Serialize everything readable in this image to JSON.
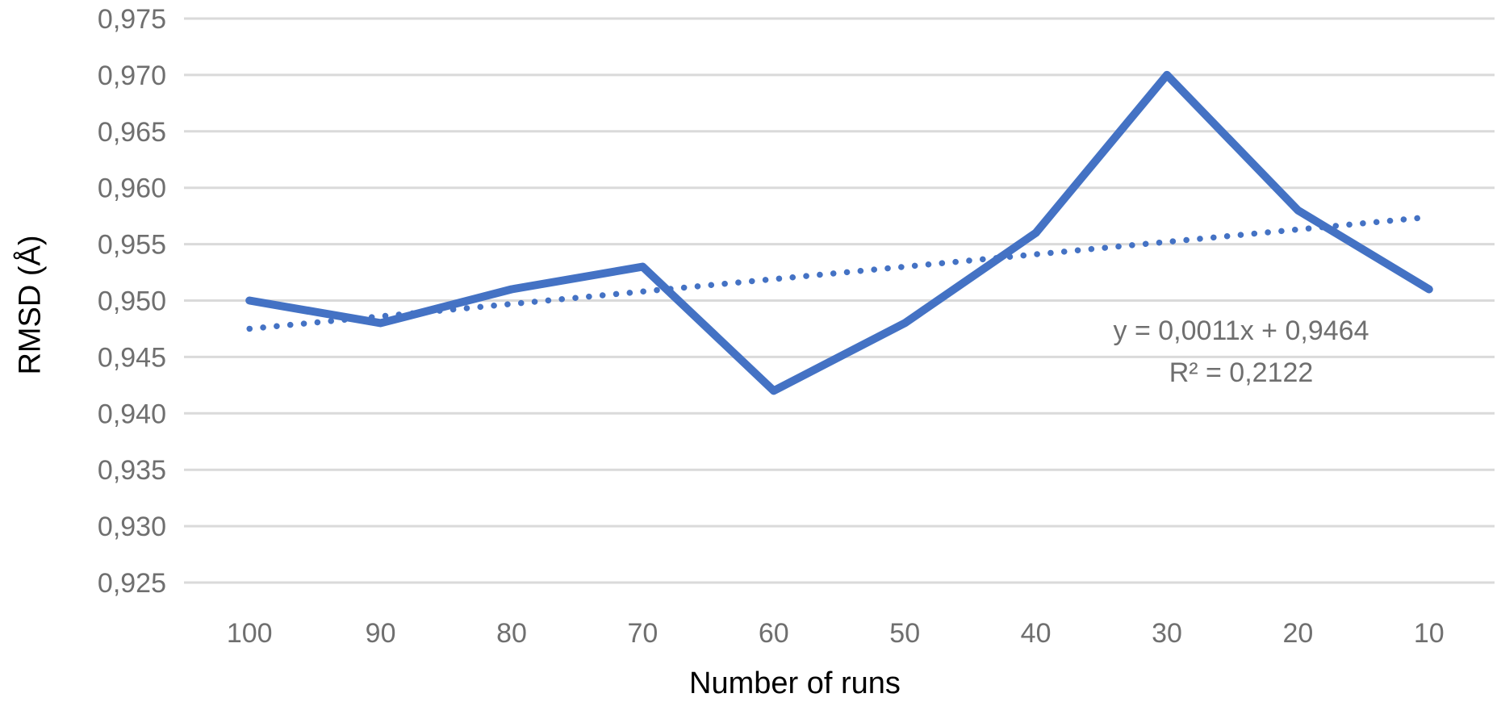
{
  "chart_data": {
    "type": "line",
    "title": "",
    "xlabel": "Number of runs",
    "ylabel": "RMSD (Å)",
    "categories": [
      "100",
      "90",
      "80",
      "70",
      "60",
      "50",
      "40",
      "30",
      "20",
      "10"
    ],
    "series": [
      {
        "name": "RMSD",
        "values": [
          0.95,
          0.948,
          0.951,
          0.953,
          0.942,
          0.948,
          0.956,
          0.97,
          0.958,
          0.951
        ]
      }
    ],
    "ylim": [
      0.925,
      0.975
    ],
    "y_tick_step": 0.005,
    "y_tick_labels": [
      "0,925",
      "0,930",
      "0,935",
      "0,940",
      "0,945",
      "0,950",
      "0,955",
      "0,960",
      "0,965",
      "0,970",
      "0,975"
    ],
    "decimal_separator": ",",
    "grid": "horizontal",
    "legend_position": "none",
    "trendline": {
      "type": "linear",
      "slope": 0.0011,
      "intercept": 0.9464,
      "equation_label": "y = 0,0011x + 0,9464",
      "r_squared_label": "R² = 0,2122",
      "line_style": "dotted"
    },
    "colors": {
      "series": "#4472C4",
      "trendline": "#4472C4",
      "gridline": "#DADADA",
      "tick_label": "#6F6F6F",
      "axis_title": "#000000",
      "equation_text": "#6F6F6F",
      "background": "#FFFFFF"
    }
  }
}
